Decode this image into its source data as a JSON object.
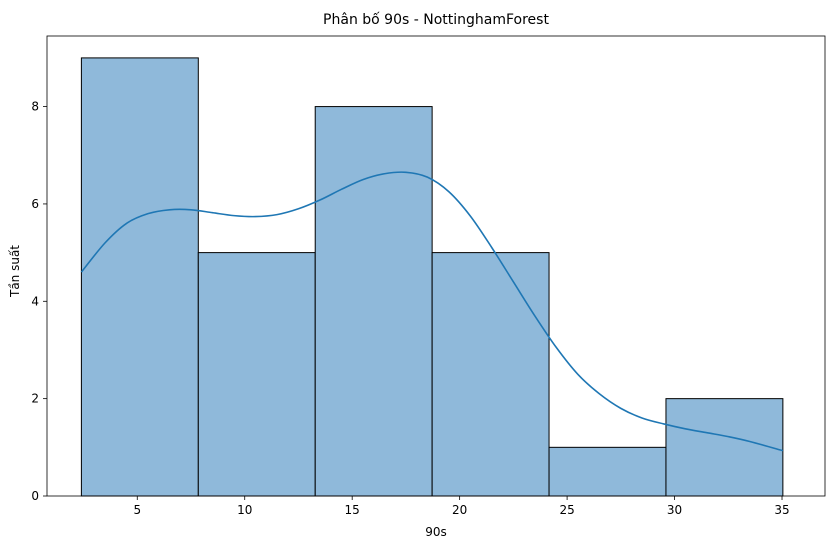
{
  "chart_data": {
    "type": "bar",
    "title": "Phân bố 90s - NottinghamForest",
    "xlabel": "90s",
    "ylabel": "Tần suất",
    "xlim": [
      0.8,
      37.0
    ],
    "ylim": [
      0,
      9.45
    ],
    "x_ticks": [
      5,
      10,
      15,
      20,
      25,
      30,
      35
    ],
    "y_ticks": [
      0,
      2,
      4,
      6,
      8
    ],
    "bins": [
      {
        "start": 2.4,
        "end": 7.84,
        "count": 9
      },
      {
        "start": 7.84,
        "end": 13.28,
        "count": 5
      },
      {
        "start": 13.28,
        "end": 18.72,
        "count": 8
      },
      {
        "start": 18.72,
        "end": 24.16,
        "count": 5
      },
      {
        "start": 24.16,
        "end": 29.6,
        "count": 1
      },
      {
        "start": 29.6,
        "end": 35.04,
        "count": 2
      }
    ],
    "kde": {
      "x": [
        2.4,
        3.5,
        4.5,
        5.5,
        6.5,
        7.5,
        8.5,
        9.5,
        10.5,
        11.5,
        12.5,
        13.5,
        14.5,
        15.5,
        16.5,
        17.5,
        18.5,
        19.5,
        20.5,
        21.5,
        22.5,
        23.5,
        24.5,
        25.5,
        26.5,
        27.5,
        28.5,
        29.5,
        30.5,
        31.5,
        32.5,
        33.5,
        35.04
      ],
      "y": [
        4.6,
        5.2,
        5.6,
        5.8,
        5.88,
        5.88,
        5.82,
        5.76,
        5.74,
        5.78,
        5.9,
        6.08,
        6.3,
        6.5,
        6.62,
        6.65,
        6.55,
        6.25,
        5.75,
        5.1,
        4.4,
        3.7,
        3.05,
        2.5,
        2.1,
        1.8,
        1.6,
        1.48,
        1.38,
        1.3,
        1.22,
        1.12,
        0.93
      ]
    },
    "bar_color": "#8fb9da",
    "bar_edge_color": "#000000",
    "line_color": "#1f77b4",
    "grid": false,
    "legend": "none"
  }
}
